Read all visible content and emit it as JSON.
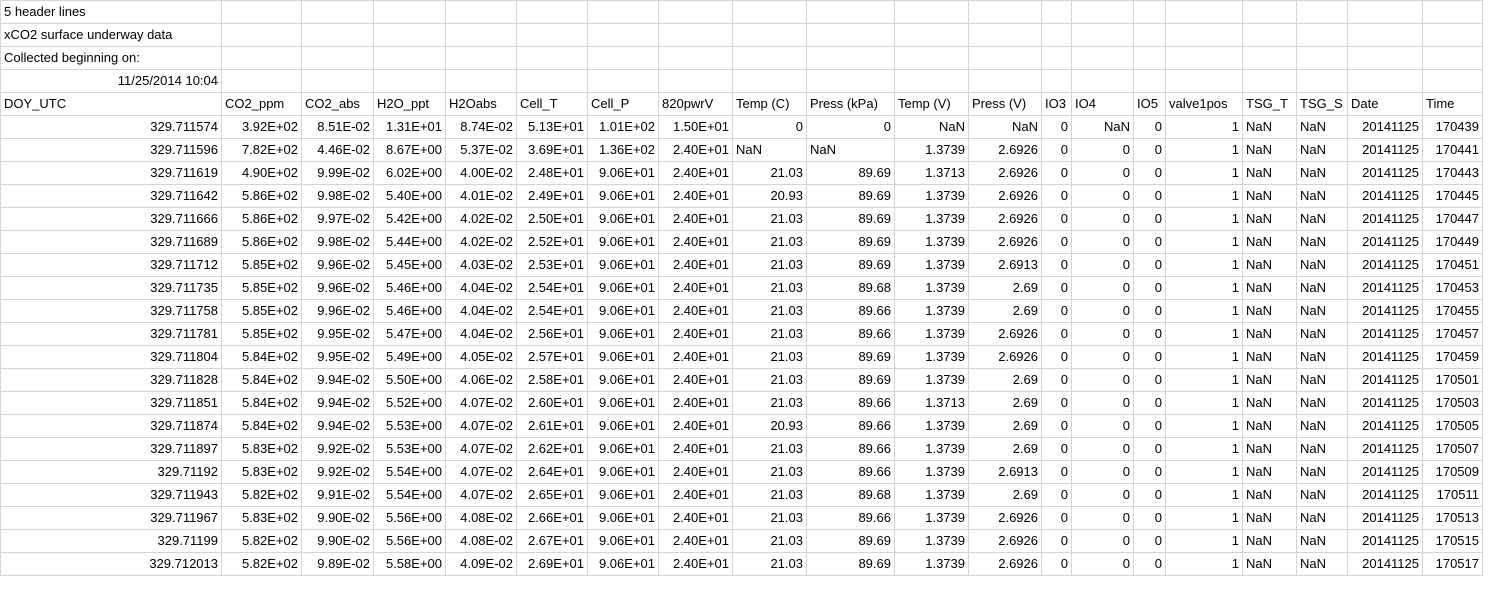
{
  "top_rows": [
    [
      "5 header lines"
    ],
    [
      "xCO2 surface underway data"
    ],
    [
      "Collected beginning on:"
    ],
    [
      "11/25/2014 10:04"
    ]
  ],
  "columns": [
    "DOY_UTC",
    "CO2_ppm",
    "CO2_abs",
    "H2O_ppt",
    "H2Oabs",
    "Cell_T",
    "Cell_P",
    "820pwrV",
    "Temp (C)",
    "Press (kPa)",
    "Temp (V)",
    "Press (V)",
    "IO3",
    "IO4",
    "IO5",
    "valve1pos",
    "TSG_T",
    "TSG_S",
    "Date",
    "Time"
  ],
  "rows": [
    [
      "329.711574",
      "3.92E+02",
      "8.51E-02",
      "1.31E+01",
      "8.74E-02",
      "5.13E+01",
      "1.01E+02",
      "1.50E+01",
      "0",
      "0",
      "NaN",
      "NaN",
      "0",
      "NaN",
      "0",
      "1",
      "NaN",
      "NaN",
      "20141125",
      "170439"
    ],
    [
      "329.711596",
      "7.82E+02",
      "4.46E-02",
      "8.67E+00",
      "5.37E-02",
      "3.69E+01",
      "1.36E+02",
      "2.40E+01",
      "NaN",
      "NaN",
      "1.3739",
      "2.6926",
      "0",
      "0",
      "0",
      "1",
      "NaN",
      "NaN",
      "20141125",
      "170441"
    ],
    [
      "329.711619",
      "4.90E+02",
      "9.99E-02",
      "6.02E+00",
      "4.00E-02",
      "2.48E+01",
      "9.06E+01",
      "2.40E+01",
      "21.03",
      "89.69",
      "1.3713",
      "2.6926",
      "0",
      "0",
      "0",
      "1",
      "NaN",
      "NaN",
      "20141125",
      "170443"
    ],
    [
      "329.711642",
      "5.86E+02",
      "9.98E-02",
      "5.40E+00",
      "4.01E-02",
      "2.49E+01",
      "9.06E+01",
      "2.40E+01",
      "20.93",
      "89.69",
      "1.3739",
      "2.6926",
      "0",
      "0",
      "0",
      "1",
      "NaN",
      "NaN",
      "20141125",
      "170445"
    ],
    [
      "329.711666",
      "5.86E+02",
      "9.97E-02",
      "5.42E+00",
      "4.02E-02",
      "2.50E+01",
      "9.06E+01",
      "2.40E+01",
      "21.03",
      "89.69",
      "1.3739",
      "2.6926",
      "0",
      "0",
      "0",
      "1",
      "NaN",
      "NaN",
      "20141125",
      "170447"
    ],
    [
      "329.711689",
      "5.86E+02",
      "9.98E-02",
      "5.44E+00",
      "4.02E-02",
      "2.52E+01",
      "9.06E+01",
      "2.40E+01",
      "21.03",
      "89.69",
      "1.3739",
      "2.6926",
      "0",
      "0",
      "0",
      "1",
      "NaN",
      "NaN",
      "20141125",
      "170449"
    ],
    [
      "329.711712",
      "5.85E+02",
      "9.96E-02",
      "5.45E+00",
      "4.03E-02",
      "2.53E+01",
      "9.06E+01",
      "2.40E+01",
      "21.03",
      "89.69",
      "1.3739",
      "2.6913",
      "0",
      "0",
      "0",
      "1",
      "NaN",
      "NaN",
      "20141125",
      "170451"
    ],
    [
      "329.711735",
      "5.85E+02",
      "9.96E-02",
      "5.46E+00",
      "4.04E-02",
      "2.54E+01",
      "9.06E+01",
      "2.40E+01",
      "21.03",
      "89.68",
      "1.3739",
      "2.69",
      "0",
      "0",
      "0",
      "1",
      "NaN",
      "NaN",
      "20141125",
      "170453"
    ],
    [
      "329.711758",
      "5.85E+02",
      "9.96E-02",
      "5.46E+00",
      "4.04E-02",
      "2.54E+01",
      "9.06E+01",
      "2.40E+01",
      "21.03",
      "89.66",
      "1.3739",
      "2.69",
      "0",
      "0",
      "0",
      "1",
      "NaN",
      "NaN",
      "20141125",
      "170455"
    ],
    [
      "329.711781",
      "5.85E+02",
      "9.95E-02",
      "5.47E+00",
      "4.04E-02",
      "2.56E+01",
      "9.06E+01",
      "2.40E+01",
      "21.03",
      "89.66",
      "1.3739",
      "2.6926",
      "0",
      "0",
      "0",
      "1",
      "NaN",
      "NaN",
      "20141125",
      "170457"
    ],
    [
      "329.711804",
      "5.84E+02",
      "9.95E-02",
      "5.49E+00",
      "4.05E-02",
      "2.57E+01",
      "9.06E+01",
      "2.40E+01",
      "21.03",
      "89.69",
      "1.3739",
      "2.6926",
      "0",
      "0",
      "0",
      "1",
      "NaN",
      "NaN",
      "20141125",
      "170459"
    ],
    [
      "329.711828",
      "5.84E+02",
      "9.94E-02",
      "5.50E+00",
      "4.06E-02",
      "2.58E+01",
      "9.06E+01",
      "2.40E+01",
      "21.03",
      "89.69",
      "1.3739",
      "2.69",
      "0",
      "0",
      "0",
      "1",
      "NaN",
      "NaN",
      "20141125",
      "170501"
    ],
    [
      "329.711851",
      "5.84E+02",
      "9.94E-02",
      "5.52E+00",
      "4.07E-02",
      "2.60E+01",
      "9.06E+01",
      "2.40E+01",
      "21.03",
      "89.66",
      "1.3713",
      "2.69",
      "0",
      "0",
      "0",
      "1",
      "NaN",
      "NaN",
      "20141125",
      "170503"
    ],
    [
      "329.711874",
      "5.84E+02",
      "9.94E-02",
      "5.53E+00",
      "4.07E-02",
      "2.61E+01",
      "9.06E+01",
      "2.40E+01",
      "20.93",
      "89.66",
      "1.3739",
      "2.69",
      "0",
      "0",
      "0",
      "1",
      "NaN",
      "NaN",
      "20141125",
      "170505"
    ],
    [
      "329.711897",
      "5.83E+02",
      "9.92E-02",
      "5.53E+00",
      "4.07E-02",
      "2.62E+01",
      "9.06E+01",
      "2.40E+01",
      "21.03",
      "89.66",
      "1.3739",
      "2.69",
      "0",
      "0",
      "0",
      "1",
      "NaN",
      "NaN",
      "20141125",
      "170507"
    ],
    [
      "329.71192",
      "5.83E+02",
      "9.92E-02",
      "5.54E+00",
      "4.07E-02",
      "2.64E+01",
      "9.06E+01",
      "2.40E+01",
      "21.03",
      "89.66",
      "1.3739",
      "2.6913",
      "0",
      "0",
      "0",
      "1",
      "NaN",
      "NaN",
      "20141125",
      "170509"
    ],
    [
      "329.711943",
      "5.82E+02",
      "9.91E-02",
      "5.54E+00",
      "4.07E-02",
      "2.65E+01",
      "9.06E+01",
      "2.40E+01",
      "21.03",
      "89.68",
      "1.3739",
      "2.69",
      "0",
      "0",
      "0",
      "1",
      "NaN",
      "NaN",
      "20141125",
      "170511"
    ],
    [
      "329.711967",
      "5.83E+02",
      "9.90E-02",
      "5.56E+00",
      "4.08E-02",
      "2.66E+01",
      "9.06E+01",
      "2.40E+01",
      "21.03",
      "89.66",
      "1.3739",
      "2.6926",
      "0",
      "0",
      "0",
      "1",
      "NaN",
      "NaN",
      "20141125",
      "170513"
    ],
    [
      "329.71199",
      "5.82E+02",
      "9.90E-02",
      "5.56E+00",
      "4.08E-02",
      "2.67E+01",
      "9.06E+01",
      "2.40E+01",
      "21.03",
      "89.69",
      "1.3739",
      "2.6926",
      "0",
      "0",
      "0",
      "1",
      "NaN",
      "NaN",
      "20141125",
      "170515"
    ],
    [
      "329.712013",
      "5.82E+02",
      "9.89E-02",
      "5.58E+00",
      "4.09E-02",
      "2.69E+01",
      "9.06E+01",
      "2.40E+01",
      "21.03",
      "89.69",
      "1.3739",
      "2.6926",
      "0",
      "0",
      "0",
      "1",
      "NaN",
      "NaN",
      "20141125",
      "170517"
    ]
  ]
}
